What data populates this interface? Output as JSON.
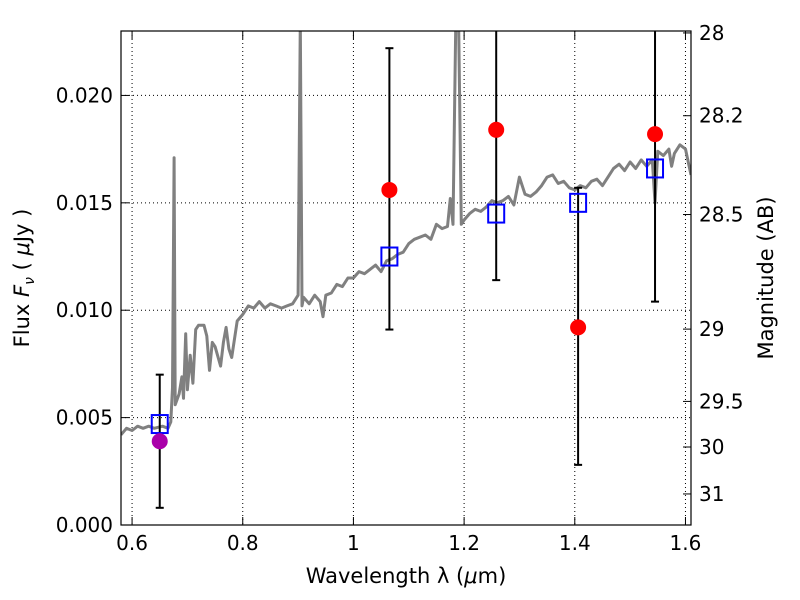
{
  "chart_data": {
    "type": "scatter",
    "xlabel": "Wavelength  λ (μm)",
    "ylabel": "Flux  F_ν  ( μJy )",
    "ylabel_right": "Magnitude (AB)",
    "xlim": [
      0.58,
      1.61
    ],
    "ylim": [
      0.0,
      0.023
    ],
    "grid": true,
    "x_ticks": [
      {
        "value": 0.6,
        "label": "0.6"
      },
      {
        "value": 0.8,
        "label": "0.8"
      },
      {
        "value": 1.0,
        "label": "1"
      },
      {
        "value": 1.2,
        "label": "1.2"
      },
      {
        "value": 1.4,
        "label": "1.4"
      },
      {
        "value": 1.6,
        "label": "1.6"
      }
    ],
    "y_ticks": [
      {
        "value": 0.0,
        "label": "0.000"
      },
      {
        "value": 0.005,
        "label": "0.005"
      },
      {
        "value": 0.01,
        "label": "0.010"
      },
      {
        "value": 0.015,
        "label": "0.015"
      },
      {
        "value": 0.02,
        "label": "0.020"
      }
    ],
    "right_ticks": [
      {
        "value": 28,
        "label": "28"
      },
      {
        "value": 28.2,
        "label": "28.2"
      },
      {
        "value": 28.5,
        "label": "28.5"
      },
      {
        "value": 29,
        "label": "29"
      },
      {
        "value": 29.5,
        "label": "29.5"
      },
      {
        "value": 30,
        "label": "30"
      },
      {
        "value": 31,
        "label": "31"
      }
    ],
    "colors": {
      "sed": "#808080",
      "observed": "#ff0000",
      "observed_optical": "#aa00aa",
      "model": "#0000ff",
      "errorbar": "#000000"
    },
    "series": [
      {
        "kind": "line",
        "points": [
          [
            0.58,
            0.0042
          ],
          [
            0.59,
            0.0045
          ],
          [
            0.6,
            0.0044
          ],
          [
            0.61,
            0.0046
          ],
          [
            0.62,
            0.0045
          ],
          [
            0.63,
            0.0046
          ],
          [
            0.64,
            0.0045
          ],
          [
            0.655,
            0.0046
          ],
          [
            0.665,
            0.0045
          ],
          [
            0.67,
            0.0048
          ],
          [
            0.673,
            0.0064
          ],
          [
            0.676,
            0.0171
          ],
          [
            0.678,
            0.0056
          ],
          [
            0.685,
            0.0061
          ],
          [
            0.69,
            0.0069
          ],
          [
            0.693,
            0.0059
          ],
          [
            0.697,
            0.0089
          ],
          [
            0.7,
            0.0063
          ],
          [
            0.705,
            0.0079
          ],
          [
            0.71,
            0.0066
          ],
          [
            0.715,
            0.0091
          ],
          [
            0.72,
            0.0093
          ],
          [
            0.73,
            0.0093
          ],
          [
            0.735,
            0.0088
          ],
          [
            0.74,
            0.0072
          ],
          [
            0.745,
            0.0085
          ],
          [
            0.75,
            0.0083
          ],
          [
            0.76,
            0.0074
          ],
          [
            0.765,
            0.0085
          ],
          [
            0.77,
            0.0092
          ],
          [
            0.775,
            0.0082
          ],
          [
            0.78,
            0.0078
          ],
          [
            0.79,
            0.0095
          ],
          [
            0.8,
            0.0098
          ],
          [
            0.81,
            0.0102
          ],
          [
            0.82,
            0.0101
          ],
          [
            0.83,
            0.0104
          ],
          [
            0.84,
            0.0101
          ],
          [
            0.85,
            0.0103
          ],
          [
            0.86,
            0.0102
          ],
          [
            0.87,
            0.0101
          ],
          [
            0.88,
            0.0102
          ],
          [
            0.89,
            0.0103
          ],
          [
            0.9,
            0.0107
          ],
          [
            0.904,
            0.0235
          ],
          [
            0.907,
            0.0102
          ],
          [
            0.91,
            0.0106
          ],
          [
            0.92,
            0.0103
          ],
          [
            0.93,
            0.0107
          ],
          [
            0.94,
            0.0104
          ],
          [
            0.945,
            0.0097
          ],
          [
            0.95,
            0.0107
          ],
          [
            0.96,
            0.0108
          ],
          [
            0.97,
            0.0112
          ],
          [
            0.98,
            0.0111
          ],
          [
            0.99,
            0.0115
          ],
          [
            1.0,
            0.0115
          ],
          [
            1.01,
            0.0118
          ],
          [
            1.02,
            0.0117
          ],
          [
            1.03,
            0.0119
          ],
          [
            1.04,
            0.0121
          ],
          [
            1.05,
            0.0118
          ],
          [
            1.06,
            0.0123
          ],
          [
            1.07,
            0.0124
          ],
          [
            1.08,
            0.0126
          ],
          [
            1.09,
            0.0127
          ],
          [
            1.1,
            0.0131
          ],
          [
            1.11,
            0.0133
          ],
          [
            1.12,
            0.0134
          ],
          [
            1.13,
            0.0135
          ],
          [
            1.14,
            0.0133
          ],
          [
            1.15,
            0.014
          ],
          [
            1.16,
            0.0138
          ],
          [
            1.17,
            0.0139
          ],
          [
            1.175,
            0.0152
          ],
          [
            1.18,
            0.014
          ],
          [
            1.185,
            0.0235
          ],
          [
            1.19,
            0.0235
          ],
          [
            1.195,
            0.014
          ],
          [
            1.2,
            0.0142
          ],
          [
            1.21,
            0.0145
          ],
          [
            1.22,
            0.0147
          ],
          [
            1.23,
            0.0146
          ],
          [
            1.24,
            0.0148
          ],
          [
            1.25,
            0.0151
          ],
          [
            1.26,
            0.015
          ],
          [
            1.27,
            0.0151
          ],
          [
            1.28,
            0.0153
          ],
          [
            1.29,
            0.0149
          ],
          [
            1.3,
            0.0162
          ],
          [
            1.31,
            0.0154
          ],
          [
            1.32,
            0.0153
          ],
          [
            1.33,
            0.0155
          ],
          [
            1.34,
            0.0158
          ],
          [
            1.35,
            0.0162
          ],
          [
            1.36,
            0.0163
          ],
          [
            1.37,
            0.0159
          ],
          [
            1.38,
            0.016
          ],
          [
            1.39,
            0.0157
          ],
          [
            1.4,
            0.0156
          ],
          [
            1.41,
            0.0158
          ],
          [
            1.42,
            0.0157
          ],
          [
            1.43,
            0.016
          ],
          [
            1.44,
            0.0161
          ],
          [
            1.45,
            0.0158
          ],
          [
            1.46,
            0.0162
          ],
          [
            1.47,
            0.0166
          ],
          [
            1.48,
            0.0168
          ],
          [
            1.49,
            0.0165
          ],
          [
            1.5,
            0.0169
          ],
          [
            1.51,
            0.0166
          ],
          [
            1.52,
            0.017
          ],
          [
            1.53,
            0.0167
          ],
          [
            1.54,
            0.017
          ],
          [
            1.545,
            0.015
          ],
          [
            1.55,
            0.0174
          ],
          [
            1.56,
            0.0172
          ],
          [
            1.57,
            0.0175
          ],
          [
            1.575,
            0.0167
          ],
          [
            1.58,
            0.0173
          ],
          [
            1.59,
            0.0177
          ],
          [
            1.6,
            0.0175
          ],
          [
            1.61,
            0.0163
          ]
        ]
      },
      {
        "kind": "errorbars",
        "points": [
          {
            "x": 0.65,
            "low": 0.0008,
            "high": 0.007
          },
          {
            "x": 1.065,
            "low": 0.0091,
            "high": 0.0222
          },
          {
            "x": 1.258,
            "low": 0.0114,
            "high": 0.0235
          },
          {
            "x": 1.406,
            "low": 0.0028,
            "high": 0.0157
          },
          {
            "x": 1.545,
            "low": 0.0104,
            "high": 0.0235
          }
        ]
      },
      {
        "kind": "model_boxes",
        "points": [
          [
            0.65,
            0.0047
          ],
          [
            1.065,
            0.0125
          ],
          [
            1.258,
            0.0145
          ],
          [
            1.406,
            0.015
          ],
          [
            1.545,
            0.0166
          ]
        ]
      },
      {
        "kind": "observed_points",
        "points": [
          {
            "x": 0.65,
            "y": 0.0039,
            "color": "observed_optical"
          },
          {
            "x": 1.065,
            "y": 0.0156,
            "color": "observed"
          },
          {
            "x": 1.258,
            "y": 0.0184,
            "color": "observed"
          },
          {
            "x": 1.406,
            "y": 0.0092,
            "color": "observed"
          },
          {
            "x": 1.545,
            "y": 0.0182,
            "color": "observed"
          }
        ]
      }
    ]
  }
}
